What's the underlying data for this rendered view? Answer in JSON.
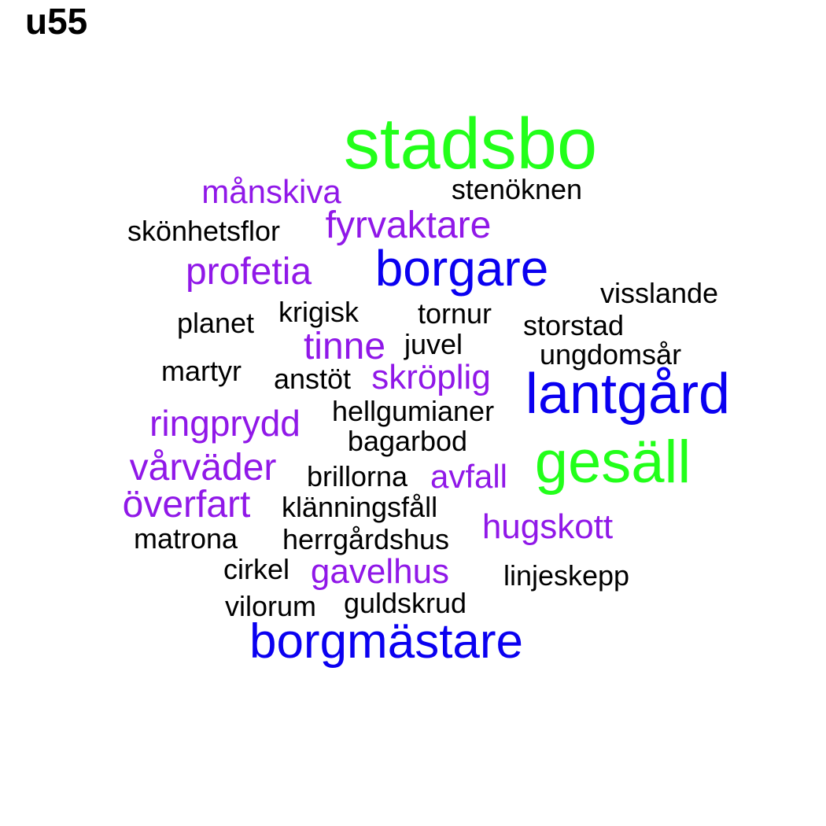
{
  "title": "u55",
  "palette": {
    "green": "#22ff1a",
    "blue": "#0a00f0",
    "purple": "#9018e8",
    "black": "#000000"
  },
  "words": [
    {
      "text": "stadsbo",
      "color": "green"
    },
    {
      "text": "månskiva",
      "color": "purple"
    },
    {
      "text": "stenöknen",
      "color": "black"
    },
    {
      "text": "fyrvaktare",
      "color": "purple"
    },
    {
      "text": "skönhetsflor",
      "color": "black"
    },
    {
      "text": "borgare",
      "color": "blue"
    },
    {
      "text": "profetia",
      "color": "purple"
    },
    {
      "text": "visslande",
      "color": "black"
    },
    {
      "text": "krigisk",
      "color": "black"
    },
    {
      "text": "tornur",
      "color": "black"
    },
    {
      "text": "planet",
      "color": "black"
    },
    {
      "text": "storstad",
      "color": "black"
    },
    {
      "text": "tinne",
      "color": "purple"
    },
    {
      "text": "juvel",
      "color": "black"
    },
    {
      "text": "ungdomsår",
      "color": "black"
    },
    {
      "text": "martyr",
      "color": "black"
    },
    {
      "text": "anstöt",
      "color": "black"
    },
    {
      "text": "skröplig",
      "color": "purple"
    },
    {
      "text": "lantgård",
      "color": "blue"
    },
    {
      "text": "hellgumianer",
      "color": "black"
    },
    {
      "text": "ringprydd",
      "color": "purple"
    },
    {
      "text": "bagarbod",
      "color": "black"
    },
    {
      "text": "gesäll",
      "color": "green"
    },
    {
      "text": "vårväder",
      "color": "purple"
    },
    {
      "text": "brillorna",
      "color": "black"
    },
    {
      "text": "avfall",
      "color": "purple"
    },
    {
      "text": "överfart",
      "color": "purple"
    },
    {
      "text": "klänningsfåll",
      "color": "black"
    },
    {
      "text": "hugskott",
      "color": "purple"
    },
    {
      "text": "matrona",
      "color": "black"
    },
    {
      "text": "herrgårdshus",
      "color": "black"
    },
    {
      "text": "cirkel",
      "color": "black"
    },
    {
      "text": "gavelhus",
      "color": "purple"
    },
    {
      "text": "linjeskepp",
      "color": "black"
    },
    {
      "text": "vilorum",
      "color": "black"
    },
    {
      "text": "guldskrud",
      "color": "black"
    },
    {
      "text": "borgmästare",
      "color": "blue"
    }
  ]
}
